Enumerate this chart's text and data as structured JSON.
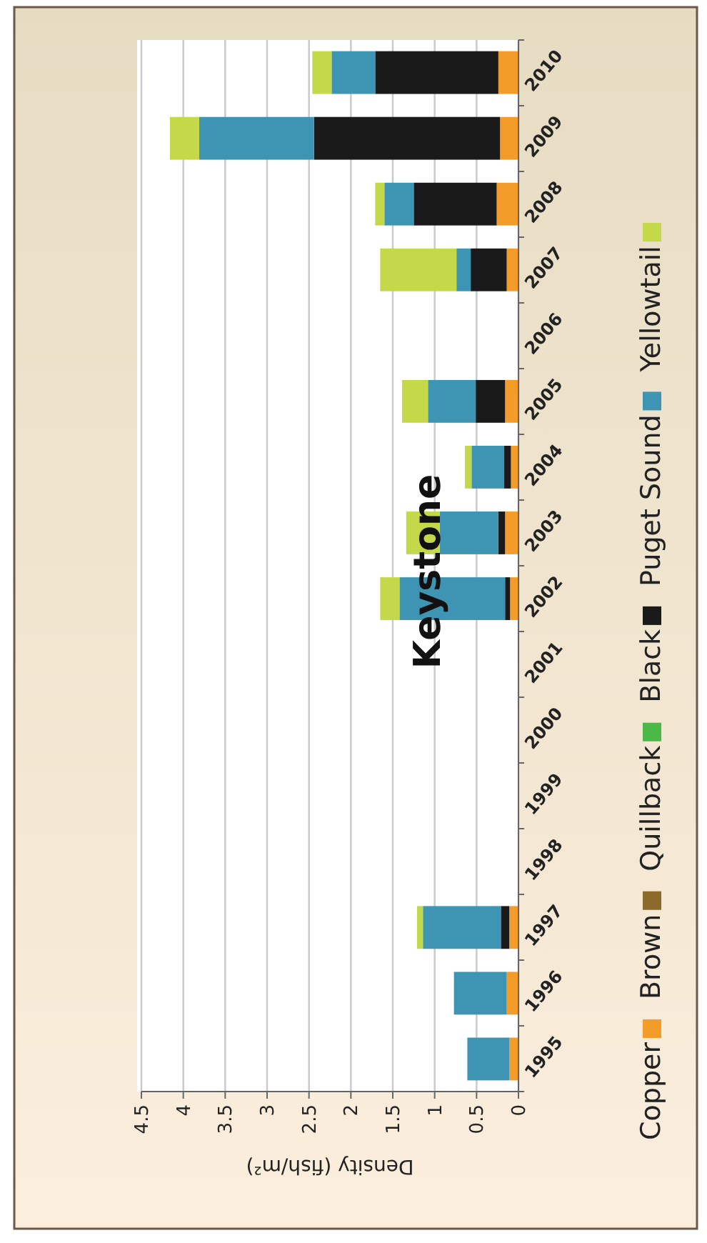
{
  "chart_data": {
    "type": "bar",
    "orientation": "horizontal",
    "title": "Keystone",
    "xlabel": "Density (fish/m²)",
    "stacked": true,
    "categories": [
      "2010",
      "2009",
      "2008",
      "2007",
      "2006",
      "2005",
      "2004",
      "2003",
      "2002",
      "2001",
      "2000",
      "1999",
      "1998",
      "1997",
      "1996",
      "1995"
    ],
    "series": [
      {
        "name": "Copper",
        "color": "#f39c2a",
        "values": [
          0.24,
          0.22,
          0.26,
          0.14,
          0,
          0.16,
          0.09,
          0.16,
          0.1,
          0,
          0,
          0,
          0,
          0.11,
          0.14,
          0.11
        ]
      },
      {
        "name": "Brown",
        "color": "#8b6a2b",
        "values": [
          0,
          0,
          0,
          0,
          0,
          0,
          0,
          0,
          0,
          0,
          0,
          0,
          0,
          0,
          0,
          0
        ]
      },
      {
        "name": "Quillback",
        "color": "#4cb848",
        "values": [
          0,
          0,
          0,
          0,
          0,
          0,
          0,
          0,
          0,
          0,
          0,
          0,
          0,
          0,
          0,
          0
        ]
      },
      {
        "name": "Black",
        "color": "#1a1a1a",
        "values": [
          1.47,
          2.22,
          0.99,
          0.43,
          0,
          0.35,
          0.08,
          0.08,
          0.06,
          0,
          0,
          0,
          0,
          0.1,
          0,
          0
        ]
      },
      {
        "name": "Puget Sound",
        "color": "#3d94b3",
        "values": [
          0.52,
          1.37,
          0.35,
          0.17,
          0,
          0.57,
          0.39,
          0.7,
          1.26,
          0,
          0,
          0,
          0,
          0.93,
          0.63,
          0.5
        ]
      },
      {
        "name": "Yellowtail",
        "color": "#c3d94a",
        "values": [
          0.23,
          0.35,
          0.11,
          0.91,
          0,
          0.31,
          0.08,
          0.4,
          0.23,
          0,
          0,
          0,
          0,
          0.07,
          0,
          0
        ]
      }
    ],
    "xlim": [
      4.5,
      0
    ],
    "xticks": [
      4.5,
      4,
      3.5,
      3,
      2.5,
      2,
      1.5,
      1,
      0.5,
      0
    ],
    "grid": true,
    "legend": "right"
  }
}
